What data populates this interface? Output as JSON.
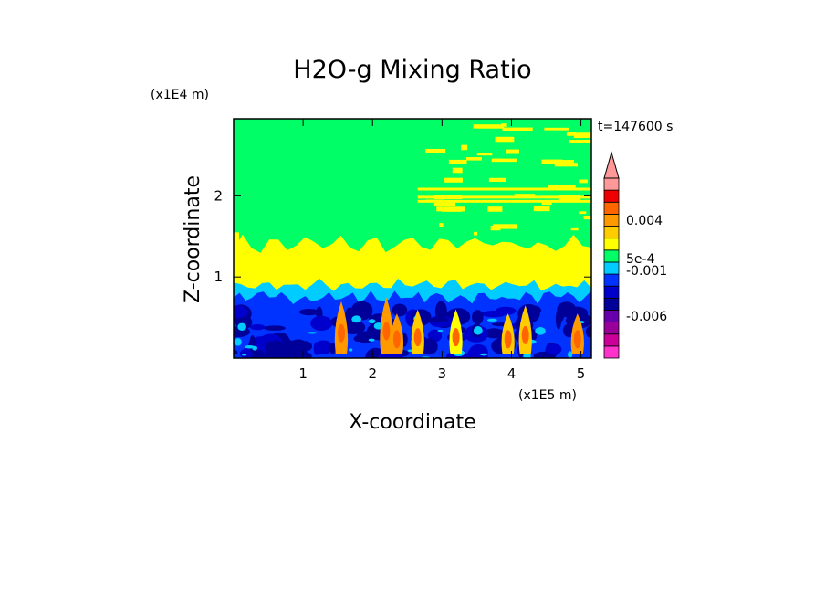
{
  "chart_data": {
    "type": "heatmap",
    "title": "H2O-g Mixing Ratio",
    "xlabel": "X-coordinate",
    "ylabel": "Z-coordinate",
    "x_scale_label": "(x1E5 m)",
    "y_scale_label": "(x1E4 m)",
    "time_label": "t=147600 s",
    "x_ticks": [
      "1",
      "2",
      "3",
      "4",
      "5"
    ],
    "y_ticks": [
      "1",
      "2"
    ],
    "xlim": [
      0,
      5.15
    ],
    "ylim": [
      0,
      2.95
    ],
    "colorbar": {
      "levels": [
        {
          "color": "#ff33cc"
        },
        {
          "color": "#cc0099"
        },
        {
          "color": "#990099"
        },
        {
          "color": "#6600aa"
        },
        {
          "color": "#000099"
        },
        {
          "color": "#0000cc"
        },
        {
          "color": "#0033ff"
        },
        {
          "color": "#00ccff"
        },
        {
          "color": "#00ff66"
        },
        {
          "color": "#ffff00"
        },
        {
          "color": "#ffcc00"
        },
        {
          "color": "#ff9900"
        },
        {
          "color": "#ff6600"
        },
        {
          "color": "#ee0000"
        },
        {
          "color": "#ff9999"
        }
      ],
      "labels": [
        "0.004",
        "5e-4",
        "-0.001",
        "-0.006"
      ],
      "extend_top_color": "#ff9999"
    },
    "regions": {
      "upper_band": {
        "color": "#00ff66",
        "z_range": [
          1.5,
          2.95
        ]
      },
      "mid_band": {
        "color": "#ffff00",
        "z_range": [
          0.85,
          1.5
        ]
      },
      "transition_band": {
        "color": "#00ccff",
        "z_range": [
          0.7,
          0.9
        ]
      },
      "lower_band": {
        "color": "#0033ff",
        "z_range": [
          0,
          0.8
        ]
      },
      "plumes": [
        {
          "x": 1.55,
          "z_top": 0.7,
          "color": "#ff9900"
        },
        {
          "x": 2.2,
          "z_top": 0.75,
          "color": "#ff9900"
        },
        {
          "x": 2.35,
          "z_top": 0.55,
          "color": "#ff9900"
        },
        {
          "x": 2.65,
          "z_top": 0.6,
          "color": "#ffcc00"
        },
        {
          "x": 3.2,
          "z_top": 0.6,
          "color": "#ffff00"
        },
        {
          "x": 3.95,
          "z_top": 0.55,
          "color": "#ffcc00"
        },
        {
          "x": 4.2,
          "z_top": 0.65,
          "color": "#ffcc00"
        },
        {
          "x": 4.95,
          "z_top": 0.55,
          "color": "#ff9900"
        }
      ]
    }
  }
}
